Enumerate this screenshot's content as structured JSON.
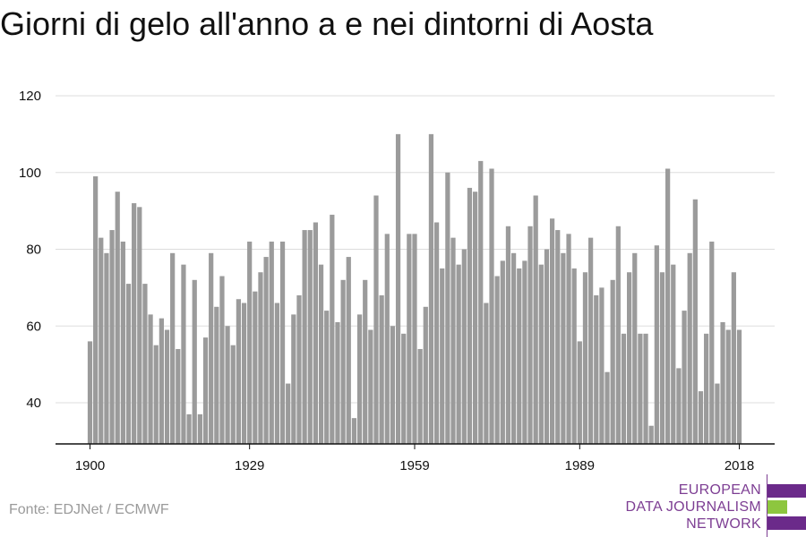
{
  "title": "Giorni di gelo all'anno a e nei dintorni di Aosta",
  "source": "Fonte: EDJNet / ECMWF",
  "logo": {
    "line1": "EUROPEAN",
    "line2": "DATA JOURNALISM",
    "line3": "NETWORK",
    "colors": {
      "purple": "#6b2a8a",
      "green": "#8dc63f",
      "text": "#7d3e93"
    }
  },
  "colors": {
    "bar": "#9b9b9b",
    "grid": "#dddddd",
    "axis": "#111111",
    "text": "#111111"
  },
  "chart_data": {
    "type": "bar",
    "x": [
      1900,
      1901,
      1902,
      1903,
      1904,
      1905,
      1906,
      1907,
      1908,
      1909,
      1910,
      1911,
      1912,
      1913,
      1914,
      1915,
      1916,
      1917,
      1918,
      1919,
      1920,
      1921,
      1922,
      1923,
      1924,
      1925,
      1926,
      1927,
      1928,
      1929,
      1930,
      1931,
      1932,
      1933,
      1934,
      1935,
      1936,
      1937,
      1938,
      1939,
      1940,
      1941,
      1942,
      1943,
      1944,
      1945,
      1946,
      1947,
      1948,
      1949,
      1950,
      1951,
      1952,
      1953,
      1954,
      1955,
      1956,
      1957,
      1958,
      1959,
      1960,
      1961,
      1962,
      1963,
      1964,
      1965,
      1966,
      1967,
      1968,
      1969,
      1970,
      1971,
      1972,
      1973,
      1974,
      1975,
      1976,
      1977,
      1978,
      1979,
      1980,
      1981,
      1982,
      1983,
      1984,
      1985,
      1986,
      1987,
      1988,
      1989,
      1990,
      1991,
      1992,
      1993,
      1994,
      1995,
      1996,
      1997,
      1998,
      1999,
      2000,
      2001,
      2002,
      2003,
      2004,
      2005,
      2006,
      2007,
      2008,
      2009,
      2010,
      2011,
      2012,
      2013,
      2014,
      2015,
      2016,
      2017,
      2018
    ],
    "values": [
      56,
      99,
      83,
      79,
      85,
      95,
      82,
      71,
      92,
      91,
      71,
      63,
      55,
      62,
      59,
      79,
      54,
      76,
      37,
      72,
      37,
      57,
      79,
      65,
      73,
      60,
      55,
      67,
      66,
      82,
      69,
      74,
      78,
      82,
      66,
      82,
      45,
      63,
      68,
      85,
      85,
      87,
      76,
      64,
      89,
      61,
      72,
      78,
      36,
      63,
      72,
      59,
      94,
      68,
      84,
      60,
      110,
      58,
      84,
      84,
      54,
      65,
      110,
      87,
      75,
      100,
      83,
      76,
      80,
      96,
      95,
      103,
      66,
      101,
      73,
      77,
      86,
      79,
      75,
      77,
      86,
      94,
      76,
      80,
      88,
      85,
      79,
      84,
      75,
      56,
      74,
      83,
      68,
      70,
      48,
      72,
      86,
      58,
      74,
      79,
      58,
      58,
      34,
      81,
      74,
      101,
      76,
      49,
      64,
      79,
      93,
      43,
      58,
      82,
      45,
      61,
      59,
      74,
      59
    ],
    "xticks": [
      "1900",
      "1929",
      "1959",
      "1989",
      "2018"
    ],
    "yticks": [
      "40",
      "60",
      "80",
      "100",
      "120"
    ],
    "ylim": [
      30,
      120
    ],
    "grid": true,
    "xlabel": "",
    "ylabel": ""
  }
}
